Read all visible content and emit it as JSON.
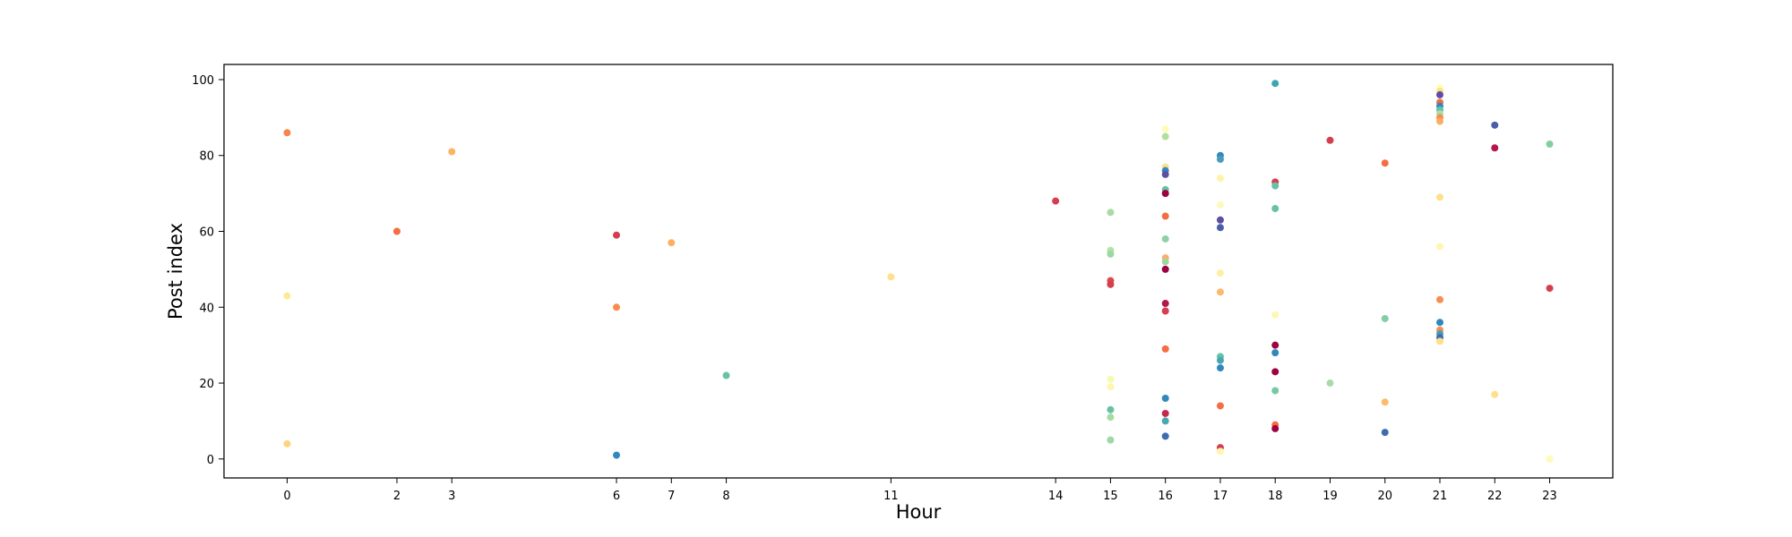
{
  "chart_data": {
    "type": "scatter",
    "title": "",
    "xlabel": "Hour",
    "ylabel": "Post index",
    "xlim": [
      -1.15,
      24.15
    ],
    "ylim": [
      -5,
      104
    ],
    "x_ticks": [
      0,
      2,
      3,
      6,
      7,
      8,
      11,
      14,
      15,
      16,
      17,
      18,
      19,
      20,
      21,
      22,
      23
    ],
    "x_tick_labels": [
      "0",
      "2",
      "3",
      "6",
      "7",
      "8",
      "11",
      "14",
      "15",
      "16",
      "17",
      "18",
      "19",
      "20",
      "21",
      "22",
      "23"
    ],
    "y_ticks": [
      0,
      20,
      40,
      60,
      80,
      100
    ],
    "y_tick_labels": [
      "0",
      "20",
      "40",
      "60",
      "80",
      "100"
    ],
    "grid": false,
    "legend": false,
    "colormap": "Spectral",
    "points": [
      {
        "x": 0,
        "y": 86,
        "color": "#f7864e"
      },
      {
        "x": 0,
        "y": 43,
        "color": "#fee999"
      },
      {
        "x": 0,
        "y": 4,
        "color": "#fdd380"
      },
      {
        "x": 2,
        "y": 60,
        "color": "#f46d43"
      },
      {
        "x": 3,
        "y": 81,
        "color": "#fdb366"
      },
      {
        "x": 6,
        "y": 59,
        "color": "#d53e4f"
      },
      {
        "x": 6,
        "y": 40,
        "color": "#f88d52"
      },
      {
        "x": 6,
        "y": 1,
        "color": "#3288bd"
      },
      {
        "x": 7,
        "y": 57,
        "color": "#fdb062"
      },
      {
        "x": 8,
        "y": 22,
        "color": "#66c2a5"
      },
      {
        "x": 11,
        "y": 48,
        "color": "#fee08b"
      },
      {
        "x": 14,
        "y": 68,
        "color": "#d53e4f"
      },
      {
        "x": 15,
        "y": 65,
        "color": "#a9dca4"
      },
      {
        "x": 15,
        "y": 55,
        "color": "#b6e2a1"
      },
      {
        "x": 15,
        "y": 54,
        "color": "#9cd7a4"
      },
      {
        "x": 15,
        "y": 47,
        "color": "#e0464a"
      },
      {
        "x": 15,
        "y": 46,
        "color": "#d53e4f"
      },
      {
        "x": 15,
        "y": 21,
        "color": "#f5fbb0"
      },
      {
        "x": 15,
        "y": 19,
        "color": "#fff5af"
      },
      {
        "x": 15,
        "y": 13,
        "color": "#66c2a5"
      },
      {
        "x": 15,
        "y": 11,
        "color": "#a7dba4"
      },
      {
        "x": 15,
        "y": 5,
        "color": "#9fd8a4"
      },
      {
        "x": 16,
        "y": 87,
        "color": "#fffbb9"
      },
      {
        "x": 16,
        "y": 85,
        "color": "#b0df9f"
      },
      {
        "x": 16,
        "y": 77,
        "color": "#fee08b"
      },
      {
        "x": 16,
        "y": 76,
        "color": "#3288bd"
      },
      {
        "x": 16,
        "y": 75,
        "color": "#5e4fa2"
      },
      {
        "x": 16,
        "y": 71,
        "color": "#66c2a5"
      },
      {
        "x": 16,
        "y": 70,
        "color": "#9e0142"
      },
      {
        "x": 16,
        "y": 64,
        "color": "#f46d43"
      },
      {
        "x": 16,
        "y": 58,
        "color": "#8fd1a4"
      },
      {
        "x": 16,
        "y": 53,
        "color": "#fdae61"
      },
      {
        "x": 16,
        "y": 52,
        "color": "#9ed6a2"
      },
      {
        "x": 16,
        "y": 50,
        "color": "#9e0142"
      },
      {
        "x": 16,
        "y": 41,
        "color": "#b3174b"
      },
      {
        "x": 16,
        "y": 39,
        "color": "#d53e4f"
      },
      {
        "x": 16,
        "y": 29,
        "color": "#f46d43"
      },
      {
        "x": 16,
        "y": 16,
        "color": "#3288bd"
      },
      {
        "x": 16,
        "y": 12,
        "color": "#c52a4c"
      },
      {
        "x": 16,
        "y": 10,
        "color": "#4aa7b1"
      },
      {
        "x": 16,
        "y": 6,
        "color": "#3f6bb0"
      },
      {
        "x": 17,
        "y": 80,
        "color": "#3288bd"
      },
      {
        "x": 17,
        "y": 79,
        "color": "#4a9cb6"
      },
      {
        "x": 17,
        "y": 74,
        "color": "#fef4a8"
      },
      {
        "x": 17,
        "y": 67,
        "color": "#fff8bd"
      },
      {
        "x": 17,
        "y": 63,
        "color": "#5e4fa2"
      },
      {
        "x": 17,
        "y": 61,
        "color": "#4a5ea9"
      },
      {
        "x": 17,
        "y": 49,
        "color": "#feefa2"
      },
      {
        "x": 17,
        "y": 44,
        "color": "#fdba6c"
      },
      {
        "x": 17,
        "y": 27,
        "color": "#66c2a5"
      },
      {
        "x": 17,
        "y": 26,
        "color": "#4aa7b1"
      },
      {
        "x": 17,
        "y": 24,
        "color": "#3288bd"
      },
      {
        "x": 17,
        "y": 14,
        "color": "#f46d43"
      },
      {
        "x": 17,
        "y": 3,
        "color": "#d53e4f"
      },
      {
        "x": 17,
        "y": 2,
        "color": "#fff6b2"
      },
      {
        "x": 18,
        "y": 99,
        "color": "#3ba5b4"
      },
      {
        "x": 18,
        "y": 73,
        "color": "#d53e4f"
      },
      {
        "x": 18,
        "y": 72,
        "color": "#66c2a5"
      },
      {
        "x": 18,
        "y": 66,
        "color": "#66c2a5"
      },
      {
        "x": 18,
        "y": 38,
        "color": "#fff6b2"
      },
      {
        "x": 18,
        "y": 30,
        "color": "#9e0142"
      },
      {
        "x": 18,
        "y": 28,
        "color": "#3288bd"
      },
      {
        "x": 18,
        "y": 23,
        "color": "#9e0142"
      },
      {
        "x": 18,
        "y": 18,
        "color": "#77c9a5"
      },
      {
        "x": 18,
        "y": 9,
        "color": "#f46d43"
      },
      {
        "x": 18,
        "y": 8,
        "color": "#9e0142"
      },
      {
        "x": 19,
        "y": 84,
        "color": "#d53e4f"
      },
      {
        "x": 19,
        "y": 20,
        "color": "#a9dca4"
      },
      {
        "x": 20,
        "y": 78,
        "color": "#f46d43"
      },
      {
        "x": 20,
        "y": 37,
        "color": "#84cea4"
      },
      {
        "x": 20,
        "y": 15,
        "color": "#fdba6c"
      },
      {
        "x": 20,
        "y": 7,
        "color": "#3f6bb0"
      },
      {
        "x": 21,
        "y": 98,
        "color": "#ffffbf"
      },
      {
        "x": 21,
        "y": 97,
        "color": "#fee08b"
      },
      {
        "x": 21,
        "y": 96,
        "color": "#5e4fa2"
      },
      {
        "x": 21,
        "y": 94,
        "color": "#f46d43"
      },
      {
        "x": 21,
        "y": 93,
        "color": "#3288bd"
      },
      {
        "x": 21,
        "y": 92,
        "color": "#66c2a5"
      },
      {
        "x": 21,
        "y": 91,
        "color": "#abdda4"
      },
      {
        "x": 21,
        "y": 90,
        "color": "#f88d52"
      },
      {
        "x": 21,
        "y": 89,
        "color": "#fdae61"
      },
      {
        "x": 21,
        "y": 69,
        "color": "#fee08b"
      },
      {
        "x": 21,
        "y": 56,
        "color": "#fff6b2"
      },
      {
        "x": 21,
        "y": 42,
        "color": "#f88d52"
      },
      {
        "x": 21,
        "y": 36,
        "color": "#3288bd"
      },
      {
        "x": 21,
        "y": 34,
        "color": "#f88d52"
      },
      {
        "x": 21,
        "y": 33,
        "color": "#4a9cb6"
      },
      {
        "x": 21,
        "y": 32,
        "color": "#3f6bb0"
      },
      {
        "x": 21,
        "y": 31,
        "color": "#fee08b"
      },
      {
        "x": 22,
        "y": 88,
        "color": "#4a5ea9"
      },
      {
        "x": 22,
        "y": 82,
        "color": "#b3174b"
      },
      {
        "x": 22,
        "y": 17,
        "color": "#fee08b"
      },
      {
        "x": 23,
        "y": 83,
        "color": "#84cea4"
      },
      {
        "x": 23,
        "y": 45,
        "color": "#d53e4f"
      },
      {
        "x": 23,
        "y": 0,
        "color": "#fffbb9"
      }
    ]
  }
}
